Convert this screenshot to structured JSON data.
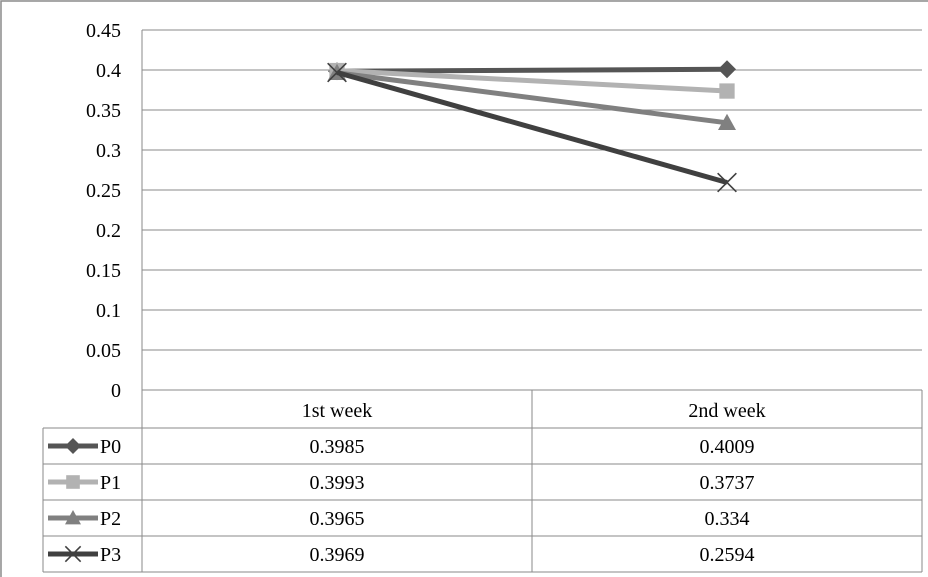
{
  "chart_data": {
    "type": "line",
    "categories": [
      "1st week",
      "2nd week"
    ],
    "series": [
      {
        "name": "P0",
        "values": [
          0.3985,
          0.4009
        ],
        "color": "#555555",
        "marker": "diamond"
      },
      {
        "name": "P1",
        "values": [
          0.3993,
          0.3737
        ],
        "color": "#b2b2b2",
        "marker": "square"
      },
      {
        "name": "P2",
        "values": [
          0.3965,
          0.334
        ],
        "color": "#808080",
        "marker": "triangle"
      },
      {
        "name": "P3",
        "values": [
          0.3969,
          0.2594
        ],
        "color": "#404040",
        "marker": "x"
      }
    ],
    "ylim": [
      0,
      0.45
    ],
    "yticks": [
      "0",
      "0.05",
      "0.1",
      "0.15",
      "0.2",
      "0.25",
      "0.3",
      "0.35",
      "0.4",
      "0.45"
    ],
    "table_values": [
      [
        "0.3985",
        "0.4009"
      ],
      [
        "0.3993",
        "0.3737"
      ],
      [
        "0.3965",
        "0.334"
      ],
      [
        "0.3969",
        "0.2594"
      ]
    ],
    "grid": true,
    "legend": "data-table-left"
  }
}
